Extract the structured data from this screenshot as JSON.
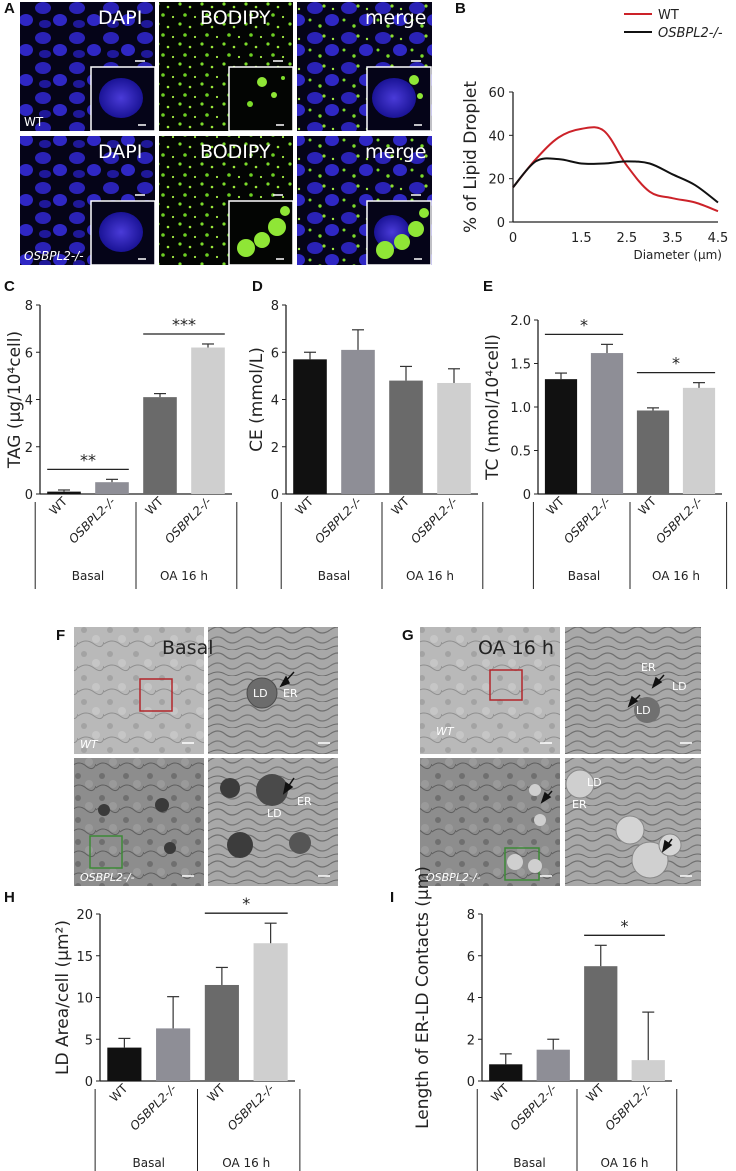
{
  "panel_letters": [
    "A",
    "B",
    "C",
    "D",
    "E",
    "F",
    "G",
    "H",
    "I"
  ],
  "panel_a": {
    "column_titles": [
      "DAPI",
      "BODIPY",
      "merge"
    ],
    "row_labels": [
      "WT",
      "OSBPL2-/-"
    ]
  },
  "panel_f": {
    "title": "Basal",
    "row_labels": [
      "WT",
      "OSBPL2-/-"
    ],
    "annotations": [
      "LD",
      "ER",
      "LD",
      "ER"
    ]
  },
  "panel_g": {
    "title": "OA 16 h",
    "row_labels": [
      "WT",
      "OSBPL2-/-"
    ],
    "annotations": [
      "ER",
      "LD",
      "LD",
      "LD",
      "ER"
    ]
  },
  "bar_colors": [
    "#111111",
    "#8e8e96",
    "#6a6a6a",
    "#cfcfcf"
  ],
  "line_colors": {
    "WT": "#cc2229",
    "OSBPL2-/-": "#111111"
  },
  "chart_data": [
    {
      "id": "B",
      "type": "line",
      "ylabel": "% of Lipid Droplet",
      "xlabel": "Diameter (μm)",
      "xlim": [
        0,
        4.5
      ],
      "ylim": [
        0,
        60
      ],
      "xticks": [
        "0",
        "1.5",
        "2.5",
        "3.5",
        "4.5"
      ],
      "yticks": [
        "0",
        "20",
        "40",
        "60"
      ],
      "legend_position": "top-right",
      "series": [
        {
          "name": "WT",
          "x": [
            0,
            0.5,
            1,
            1.5,
            2,
            2.5,
            3,
            3.5,
            4,
            4.5
          ],
          "values": [
            16,
            29,
            39,
            43,
            42,
            26,
            14,
            11,
            9,
            5
          ]
        },
        {
          "name": "OSBPL2-/-",
          "x": [
            0,
            0.5,
            1,
            1.5,
            2,
            2.5,
            3,
            3.5,
            4,
            4.5
          ],
          "values": [
            16,
            28,
            29,
            27,
            27,
            28,
            27,
            22,
            17,
            9
          ]
        }
      ]
    },
    {
      "id": "C",
      "type": "bar",
      "ylabel": "TAG (μg/10⁴cell)",
      "ylim": [
        0,
        8
      ],
      "yticks": [
        "0",
        "2",
        "4",
        "6",
        "8"
      ],
      "categories": [
        "WT",
        "OSBPL2-/-",
        "WT",
        "OSBPL2-/-"
      ],
      "groups": [
        "Basal",
        "OA 16 h"
      ],
      "values": [
        0.1,
        0.5,
        4.1,
        6.2
      ],
      "errors": [
        0.07,
        0.12,
        0.15,
        0.15
      ],
      "significance": [
        {
          "pair": [
            0,
            1
          ],
          "label": "**"
        },
        {
          "pair": [
            2,
            3
          ],
          "label": "***"
        }
      ]
    },
    {
      "id": "D",
      "type": "bar",
      "ylabel": "CE (mmol/L)",
      "ylim": [
        0,
        8
      ],
      "yticks": [
        "0",
        "2",
        "4",
        "6",
        "8"
      ],
      "categories": [
        "WT",
        "OSBPL2-/-",
        "WT",
        "OSBPL2-/-"
      ],
      "groups": [
        "Basal",
        "OA 16 h"
      ],
      "values": [
        5.7,
        6.1,
        4.8,
        4.7
      ],
      "errors": [
        0.3,
        0.85,
        0.6,
        0.6
      ]
    },
    {
      "id": "E",
      "type": "bar",
      "ylabel": "TC (nmol/10⁴cell)",
      "ylim": [
        0,
        2.0
      ],
      "yticks": [
        "0",
        "0.5",
        "1.0",
        "1.5",
        "2.0"
      ],
      "categories": [
        "WT",
        "OSBPL2-/-",
        "WT",
        "OSBPL2-/-"
      ],
      "groups": [
        "Basal",
        "OA 16 h"
      ],
      "values": [
        1.32,
        1.62,
        0.96,
        1.22
      ],
      "errors": [
        0.07,
        0.1,
        0.03,
        0.06
      ],
      "significance": [
        {
          "pair": [
            0,
            1
          ],
          "label": "*"
        },
        {
          "pair": [
            2,
            3
          ],
          "label": "*"
        }
      ]
    },
    {
      "id": "H",
      "type": "bar",
      "ylabel": "LD Area/cell (μm²)",
      "ylim": [
        0,
        20
      ],
      "yticks": [
        "0",
        "5",
        "10",
        "15",
        "20"
      ],
      "categories": [
        "WT",
        "OSBPL2-/-",
        "WT",
        "OSBPL2-/-"
      ],
      "groups": [
        "Basal",
        "OA 16 h"
      ],
      "values": [
        4.0,
        6.3,
        11.5,
        16.5
      ],
      "errors": [
        1.1,
        3.8,
        2.1,
        2.4
      ],
      "significance": [
        {
          "pair": [
            2,
            3
          ],
          "label": "*"
        }
      ]
    },
    {
      "id": "I",
      "type": "bar",
      "ylabel": "Length of ER-LD Contacts (μm)",
      "ylim": [
        0,
        8
      ],
      "yticks": [
        "0",
        "2",
        "4",
        "6",
        "8"
      ],
      "categories": [
        "WT",
        "OSBPL2-/-",
        "WT",
        "OSBPL2-/-"
      ],
      "groups": [
        "Basal",
        "OA 16 h"
      ],
      "values": [
        0.8,
        1.5,
        5.5,
        1.0
      ],
      "errors": [
        0.5,
        0.5,
        1.0,
        2.3
      ],
      "significance": [
        {
          "pair": [
            2,
            3
          ],
          "label": "*"
        }
      ]
    }
  ]
}
